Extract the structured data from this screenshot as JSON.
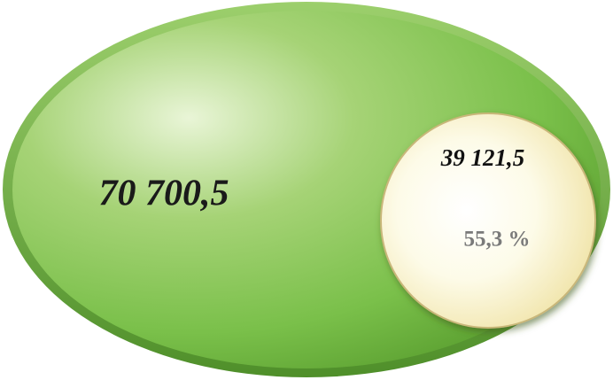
{
  "total": {
    "label": "70 700,5"
  },
  "part": {
    "label": "39 121,5",
    "share": "55,3 %"
  }
}
